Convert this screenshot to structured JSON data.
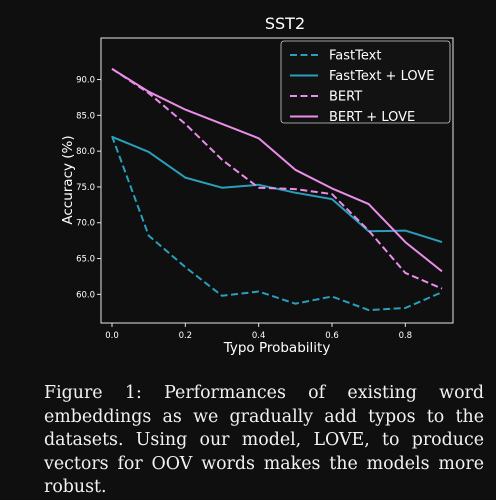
{
  "chart_data": {
    "type": "line",
    "title": "SST2",
    "xlabel": "Typo Probability",
    "ylabel": "Accuracy (%)",
    "xlim": [
      -0.03,
      0.93
    ],
    "ylim": [
      56.0,
      95.8
    ],
    "xticks": [
      0.0,
      0.2,
      0.4,
      0.6,
      0.8
    ],
    "yticks": [
      60.0,
      65.0,
      70.0,
      75.0,
      80.0,
      85.0,
      90.0
    ],
    "xtick_labels": [
      "0.0",
      "0.2",
      "0.4",
      "0.6",
      "0.8"
    ],
    "ytick_labels": [
      "60.0",
      "65.0",
      "70.0",
      "75.0",
      "80.0",
      "85.0",
      "90.0"
    ],
    "grid": false,
    "legend_position": "top-right",
    "x": [
      0.0,
      0.1,
      0.2,
      0.3,
      0.4,
      0.5,
      0.6,
      0.7,
      0.8,
      0.9
    ],
    "series": [
      {
        "name": "FastText",
        "color": "#2a9fbc",
        "dashed": true,
        "values": [
          82.1,
          68.2,
          63.8,
          59.8,
          60.4,
          58.7,
          59.7,
          57.8,
          58.1,
          60.3
        ]
      },
      {
        "name": "FastText + LOVE",
        "color": "#2a9fbc",
        "dashed": false,
        "values": [
          82.0,
          79.9,
          76.3,
          74.9,
          75.3,
          74.2,
          73.3,
          68.8,
          68.9,
          67.3
        ]
      },
      {
        "name": "BERT",
        "color": "#e98ee9",
        "dashed": true,
        "values": [
          91.5,
          88.1,
          83.8,
          78.8,
          74.9,
          74.7,
          74.0,
          68.9,
          63.0,
          60.8
        ]
      },
      {
        "name": "BERT + LOVE",
        "color": "#e98ee9",
        "dashed": false,
        "values": [
          91.5,
          88.3,
          85.8,
          83.8,
          81.8,
          77.4,
          74.8,
          72.6,
          67.3,
          63.2
        ]
      }
    ]
  },
  "caption": "Figure 1: Performances of existing word embeddings as we gradually add typos to the datasets.  Using our model, LOVE, to produce vectors for OOV words makes the models more robust."
}
